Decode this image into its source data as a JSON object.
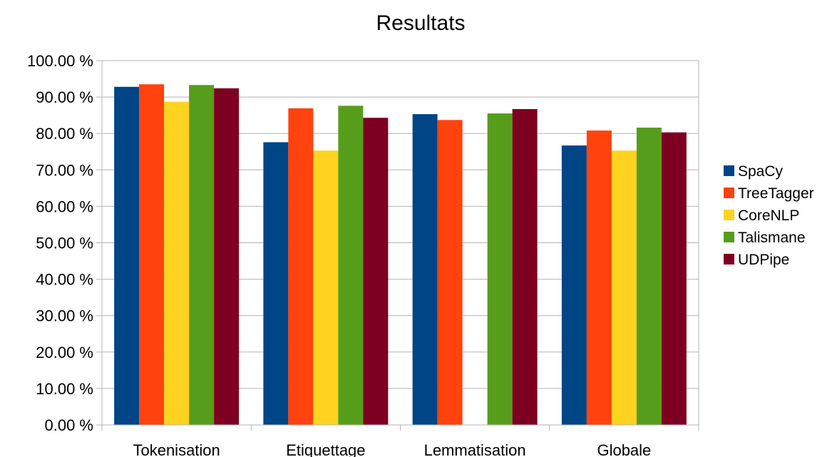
{
  "chart_data": {
    "type": "bar",
    "title": "Resultats",
    "categories": [
      "Tokenisation",
      "Etiquettage",
      "Lemmatisation",
      "Globale"
    ],
    "ylim": [
      0,
      100
    ],
    "yticks": [
      "0.00 %",
      "10.00 %",
      "20.00 %",
      "30.00 %",
      "40.00 %",
      "50.00 %",
      "60.00 %",
      "70.00 %",
      "80.00 %",
      "90.00 %",
      "100.00 %"
    ],
    "grid": true,
    "legend_position": "right",
    "series": [
      {
        "name": "SpaCy",
        "color": "#004586",
        "values": [
          92.8,
          77.6,
          85.3,
          76.7
        ]
      },
      {
        "name": "TreeTagger",
        "color": "#ff420e",
        "values": [
          93.5,
          86.9,
          83.7,
          80.8
        ]
      },
      {
        "name": "CoreNLP",
        "color": "#ffd320",
        "values": [
          88.7,
          75.3,
          null,
          75.3
        ]
      },
      {
        "name": "Talismane",
        "color": "#579d1c",
        "values": [
          93.3,
          87.6,
          85.5,
          81.6
        ]
      },
      {
        "name": "UDPipe",
        "color": "#7e0021",
        "values": [
          92.4,
          84.3,
          86.7,
          80.3
        ]
      }
    ]
  }
}
